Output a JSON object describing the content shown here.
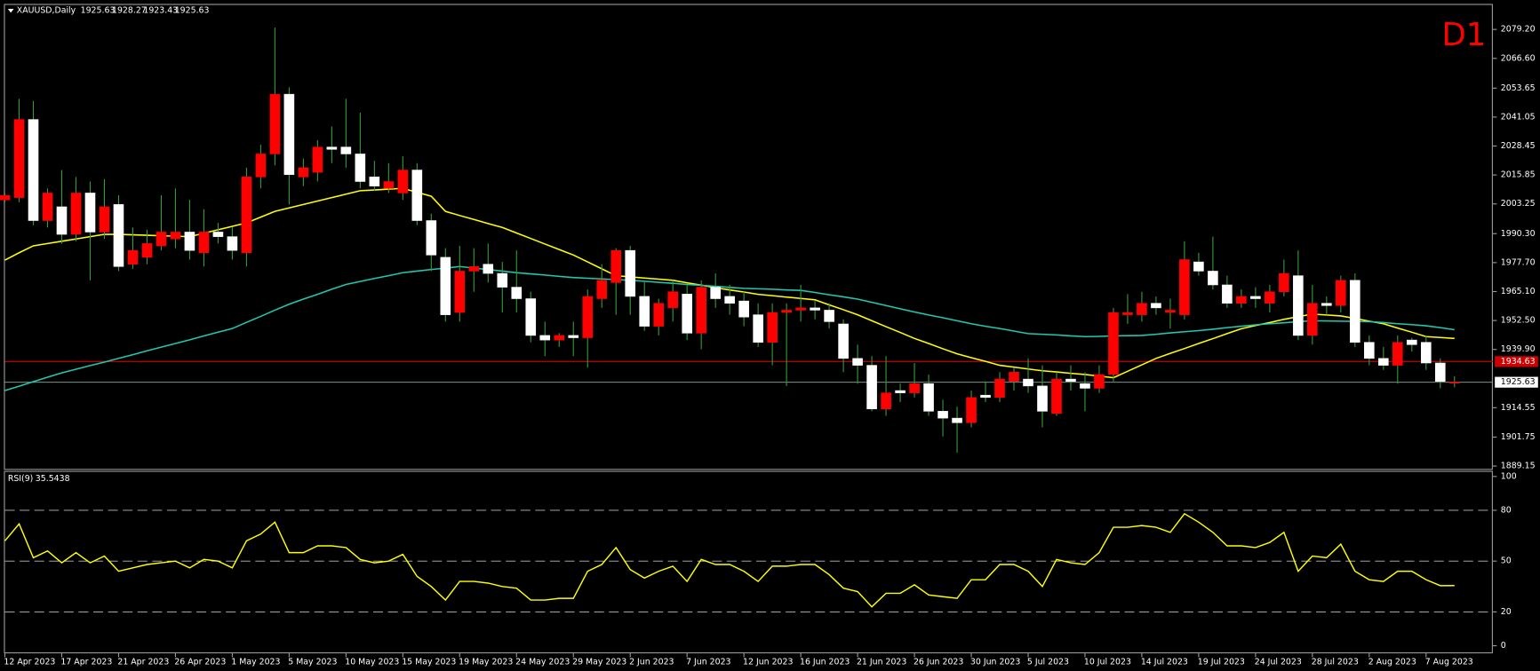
{
  "chart_data": [
    {
      "type": "candlestick",
      "title": "XAUUSD,Daily",
      "timeframe": "D1",
      "categories": [
        "12 Apr 2023",
        null,
        null,
        null,
        "17 Apr 2023",
        null,
        null,
        null,
        "21 Apr 2023",
        null,
        null,
        null,
        "26 Apr 2023",
        null,
        null,
        null,
        "1 May 2023",
        null,
        null,
        null,
        "5 May 2023",
        null,
        null,
        null,
        "10 May 2023",
        null,
        null,
        null,
        "15 May 2023",
        null,
        null,
        null,
        "19 May 2023",
        null,
        null,
        null,
        "24 May 2023",
        null,
        null,
        null,
        "29 May 2023",
        null,
        null,
        null,
        "2 Jun 2023",
        null,
        null,
        null,
        "7 Jun 2023",
        null,
        null,
        null,
        "12 Jun 2023",
        null,
        null,
        null,
        "16 Jun 2023",
        null,
        null,
        null,
        "21 Jun 2023",
        null,
        null,
        null,
        "26 Jun 2023",
        null,
        null,
        null,
        "30 Jun 2023",
        null,
        null,
        null,
        "5 Jul 2023",
        null,
        null,
        null,
        "10 Jul 2023",
        null,
        null,
        null,
        "14 Jul 2023",
        null,
        null,
        null,
        "19 Jul 2023",
        null,
        null,
        null,
        "24 Jul 2023",
        null,
        null,
        null,
        "28 Jul 2023",
        null,
        null,
        null,
        "2 Aug 2023",
        null,
        null,
        null,
        "7 Aug 2023",
        null,
        null
      ],
      "open": [
        2005,
        2006,
        2040,
        1996,
        2002,
        1990,
        2008,
        1991,
        2003,
        1977,
        1980,
        1985,
        1988,
        1991,
        1982,
        1991,
        1989,
        1982,
        2015,
        2025,
        2051,
        2015,
        2017,
        2028,
        2028,
        2025,
        2015,
        2010,
        2008,
        2018,
        1996,
        1980,
        1956,
        1974,
        1977,
        1973,
        1967,
        1962,
        1946,
        1944,
        1946,
        1945,
        1962,
        1969,
        1983,
        1963,
        1950,
        1958,
        1964,
        1947,
        1967,
        1963,
        1961,
        1955,
        1943,
        1956,
        1957,
        1958,
        1957,
        1951,
        1936,
        1933,
        1914,
        1922,
        1921,
        1925,
        1913,
        1910,
        1908,
        1920,
        1919,
        1926,
        1927,
        1924,
        1912,
        1927,
        1925,
        1923,
        1929,
        1955,
        1955,
        1960,
        1956,
        1955,
        1978,
        1974,
        1968,
        1960,
        1963,
        1960,
        1965,
        1972,
        1946,
        1960,
        1959,
        1970,
        1943,
        1936,
        1933,
        1944,
        1943,
        1934,
        1925.63
      ],
      "high": [
        2008,
        2049,
        2048,
        2010,
        2018,
        2015,
        2013,
        2014,
        2007,
        1993,
        1992,
        2007,
        2010,
        2005,
        2001,
        1995,
        1993,
        2019,
        2029,
        2080,
        2054,
        2023,
        2031,
        2037,
        2049,
        2043,
        2022,
        2021,
        2024,
        2021,
        1999,
        1984,
        1985,
        1984,
        1986,
        1978,
        1983,
        1965,
        1952,
        1947,
        1952,
        1966,
        1977,
        1984,
        1985,
        1970,
        1962,
        1970,
        1968,
        1970,
        1973,
        1968,
        1965,
        1960,
        1960,
        1960,
        1968,
        1961,
        1960,
        1953,
        1942,
        1937,
        1937,
        1925,
        1934,
        1929,
        1918,
        1915,
        1922,
        1926,
        1930,
        1932,
        1936,
        1933,
        1930,
        1933,
        1930,
        1933,
        1958,
        1964,
        1965,
        1963,
        1962,
        1987,
        1982,
        1989,
        1972,
        1966,
        1967,
        1968,
        1979,
        1983,
        1968,
        1963,
        1972,
        1973,
        1946,
        1941,
        1946,
        1945,
        1946,
        1936,
        1928.27
      ],
      "low": [
        2004,
        2004,
        1994,
        1993,
        1986,
        1987,
        1970,
        1988,
        1974,
        1975,
        1977,
        1983,
        1984,
        1979,
        1976,
        1986,
        1979,
        1976,
        2010,
        2020,
        2003,
        2011,
        2013,
        2021,
        2019,
        2010,
        2009,
        2008,
        2005,
        1994,
        1974,
        1952,
        1952,
        1965,
        1969,
        1956,
        1956,
        1943,
        1937,
        1941,
        1937,
        1932,
        1958,
        1955,
        1955,
        1948,
        1946,
        1952,
        1944,
        1940,
        1958,
        1955,
        1950,
        1941,
        1933,
        1924,
        1952,
        1953,
        1949,
        1930,
        1925,
        1913,
        1911,
        1917,
        1919,
        1911,
        1902,
        1895,
        1906,
        1917,
        1917,
        1922,
        1921,
        1906,
        1911,
        1922,
        1913,
        1921,
        1926,
        1951,
        1952,
        1955,
        1949,
        1953,
        1972,
        1966,
        1958,
        1958,
        1958,
        1956,
        1963,
        1944,
        1942,
        1955,
        1956,
        1941,
        1933,
        1931,
        1925,
        1939,
        1931,
        1923,
        1923.43
      ],
      "close": [
        2007,
        2040,
        1996,
        2008,
        1990,
        2008,
        1991,
        2002,
        1976,
        1983,
        1986,
        1991,
        1991,
        1983,
        1991,
        1989,
        1983,
        2015,
        2025,
        2051,
        2016,
        2019,
        2028,
        2027,
        2025,
        2013,
        2011,
        2013,
        2018,
        1996,
        1981,
        1955,
        1974,
        1976,
        1973,
        1967,
        1962,
        1946,
        1944,
        1946,
        1945,
        1963,
        1970,
        1983,
        1963,
        1950,
        1960,
        1965,
        1947,
        1967,
        1962,
        1960,
        1954,
        1943,
        1956,
        1957,
        1958,
        1957,
        1952,
        1936,
        1933,
        1914,
        1921,
        1921,
        1925,
        1913,
        1910,
        1908,
        1919,
        1919,
        1927,
        1930,
        1924,
        1913,
        1927,
        1926,
        1923,
        1929,
        1956,
        1956,
        1960,
        1958,
        1957,
        1979,
        1974,
        1968,
        1960,
        1963,
        1962,
        1965,
        1973,
        1946,
        1960,
        1959,
        1970,
        1943,
        1936,
        1933,
        1943,
        1942,
        1934,
        1926,
        1925.63
      ],
      "up_color": "#ff0000",
      "down_color": "#ffffff",
      "wick_color": "#3a9a3a",
      "series": [
        {
          "color": "#ffff00",
          "values": [
            1978.8,
            1982,
            1985,
            1986,
            1987,
            1988,
            1989,
            1990,
            1990,
            1989.8,
            1989.6,
            1989.4,
            1989.2,
            1989,
            1990.5,
            1992,
            1993.5,
            1995,
            1997.5,
            2000,
            2001.5,
            2003,
            2004.5,
            2006,
            2007.5,
            2009,
            2009.3,
            2009.7,
            2010,
            2008.3,
            2006.6,
            2000,
            1998.2,
            1996.5,
            1994.7,
            1993,
            1990.6,
            1988.2,
            1985.8,
            1983.4,
            1981,
            1978,
            1975,
            1972,
            1971.5,
            1971,
            1970.5,
            1970,
            1968.9,
            1967.9,
            1966.8,
            1965.8,
            1964.9,
            1963.9,
            1963.3,
            1962.7,
            1962.1,
            1961.5,
            1959.3,
            1957.2,
            1955,
            1952.4,
            1949.8,
            1947.3,
            1944.7,
            1942.5,
            1940.2,
            1938,
            1936.3,
            1934.7,
            1933,
            1932.2,
            1931.4,
            1930.6,
            1930.1,
            1929.5,
            1929,
            1928.3,
            1927.6,
            1930.4,
            1933.2,
            1936,
            1938.2,
            1940.3,
            1942.5,
            1944.6,
            1946.8,
            1948.9,
            1950.3,
            1951.6,
            1953,
            1954.2,
            1955.3,
            1954.9,
            1954.5,
            1953.4,
            1952.2,
            1951.1,
            1949.2,
            1947.4,
            1945.5,
            1945.1,
            1944.7
          ]
        },
        {
          "color": "#20c8b0",
          "values": [
            1922,
            1923.9,
            1925.9,
            1927.8,
            1929.7,
            1931.3,
            1932.9,
            1934.4,
            1936,
            1937.6,
            1939.3,
            1940.9,
            1942.5,
            1944.1,
            1945.8,
            1947.4,
            1949,
            1951.7,
            1954.3,
            1957,
            1959.6,
            1961.8,
            1963.9,
            1966.1,
            1968.2,
            1969.5,
            1970.8,
            1972,
            1973.3,
            1974,
            1974.7,
            1975.3,
            1976,
            1975.3,
            1974.7,
            1974,
            1973.3,
            1972.8,
            1972.3,
            1971.7,
            1971.2,
            1970.9,
            1970.6,
            1970.3,
            1970,
            1969.6,
            1969.1,
            1968.7,
            1968.2,
            1967.8,
            1967.4,
            1966.9,
            1966.5,
            1966.3,
            1966.1,
            1965.8,
            1965.6,
            1964.7,
            1963.7,
            1962.8,
            1961.8,
            1960.4,
            1959,
            1957.6,
            1956.2,
            1954.9,
            1953.7,
            1952.4,
            1951.1,
            1950,
            1949,
            1947.9,
            1946.8,
            1946.5,
            1946.2,
            1945.8,
            1945.5,
            1945.6,
            1945.8,
            1945.9,
            1946,
            1946.5,
            1947.1,
            1947.6,
            1948.1,
            1948.7,
            1949.4,
            1950,
            1950.6,
            1951.1,
            1951.5,
            1952,
            1952.4,
            1952.3,
            1952.2,
            1952.1,
            1952,
            1951.6,
            1951.1,
            1950.7,
            1950.2,
            1949.4,
            1948.5
          ]
        }
      ],
      "hlines": [
        {
          "value": 1934.63,
          "color": "#d00000"
        }
      ],
      "ylim": [
        1887.9,
        2090.3
      ],
      "yticks": [
        {
          "value": 2079.2,
          "label": "2079.20"
        },
        {
          "value": 2066.6,
          "label": "2066.60"
        },
        {
          "value": 2053.65,
          "label": "2053.65"
        },
        {
          "value": 2041.05,
          "label": "2041.05"
        },
        {
          "value": 2028.45,
          "label": "2028.45"
        },
        {
          "value": 2015.85,
          "label": "2015.85"
        },
        {
          "value": 2003.25,
          "label": "2003.25"
        },
        {
          "value": 1990.3,
          "label": "1990.30"
        },
        {
          "value": 1977.7,
          "label": "1977.70"
        },
        {
          "value": 1965.1,
          "label": "1965.10"
        },
        {
          "value": 1952.5,
          "label": "1952.50"
        },
        {
          "value": 1939.9,
          "label": "1939.90"
        },
        {
          "value": 1914.55,
          "label": "1914.55"
        },
        {
          "value": 1901.75,
          "label": "1901.75"
        },
        {
          "value": 1889.15,
          "label": "1889.15"
        }
      ]
    },
    {
      "type": "line",
      "title": "RSI(9)",
      "color": "#ffff00",
      "values": [
        62,
        72,
        52,
        56,
        49,
        55,
        49,
        53,
        44,
        46,
        48,
        49,
        50,
        46,
        51,
        50,
        46,
        62,
        66,
        73,
        55,
        55,
        59,
        59,
        58,
        51,
        49,
        50,
        54,
        41,
        35,
        27,
        38,
        38,
        37,
        35,
        34,
        27,
        27,
        28,
        28,
        44,
        48,
        58,
        45,
        40,
        44,
        47,
        38,
        51,
        48,
        48,
        44,
        38,
        47,
        47,
        48,
        48,
        42,
        34,
        32,
        23,
        31,
        31,
        36,
        30,
        29,
        28,
        39,
        39,
        48,
        48,
        44,
        35,
        51,
        49,
        48,
        55,
        70,
        70,
        71,
        70,
        67,
        78,
        73,
        67,
        59,
        59,
        58,
        61,
        67,
        44,
        53,
        52,
        60,
        44,
        39,
        38,
        44,
        44,
        39,
        35.5,
        35.5438
      ],
      "ylim": [
        -3.9,
        103.3
      ],
      "yticks": [
        0,
        20,
        50,
        80,
        100
      ],
      "levels": [
        20,
        50,
        80
      ]
    }
  ]
}
